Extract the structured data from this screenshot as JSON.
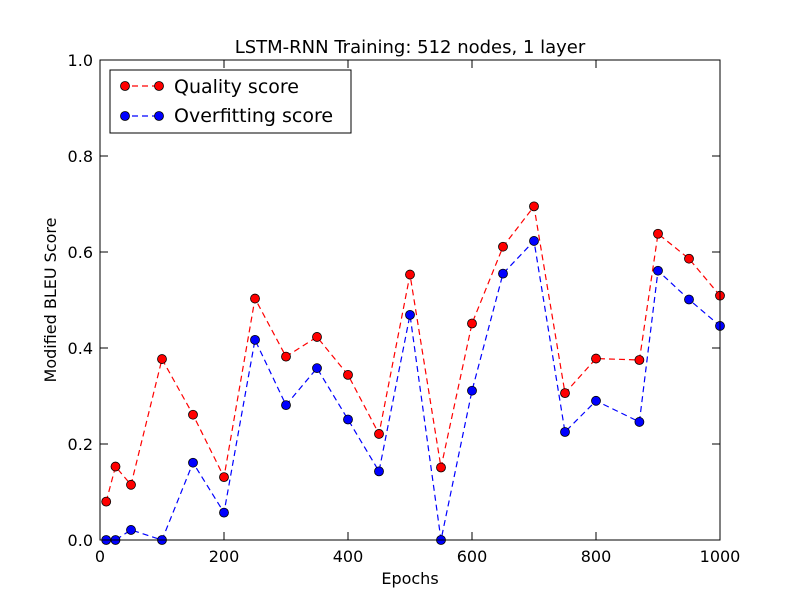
{
  "chart_data": {
    "type": "line",
    "title": "LSTM-RNN Training: 512 nodes, 1 layer",
    "xlabel": "Epochs",
    "ylabel": "Modified BLEU Score",
    "xlim": [
      0,
      1000
    ],
    "ylim": [
      0.0,
      1.0
    ],
    "x_ticks": [
      0,
      200,
      400,
      600,
      800,
      1000
    ],
    "x_tick_labels": [
      "0",
      "200",
      "400",
      "600",
      "800",
      "1000"
    ],
    "y_ticks": [
      0.0,
      0.2,
      0.4,
      0.6,
      0.8,
      1.0
    ],
    "y_tick_labels": [
      "0.0",
      "0.2",
      "0.4",
      "0.6",
      "0.8",
      "1.0"
    ],
    "grid": false,
    "legend_position": "top-left",
    "x": [
      10,
      25,
      50,
      100,
      150,
      200,
      250,
      300,
      350,
      400,
      450,
      500,
      550,
      600,
      650,
      700,
      750,
      800,
      870,
      900,
      950,
      1000
    ],
    "series": [
      {
        "name": "Quality score",
        "color": "#ff0000",
        "values": [
          0.08,
          0.153,
          0.115,
          0.377,
          0.261,
          0.131,
          0.503,
          0.382,
          0.423,
          0.344,
          0.221,
          0.553,
          0.151,
          0.451,
          0.611,
          0.695,
          0.306,
          0.378,
          0.375,
          0.638,
          0.586,
          0.509
        ]
      },
      {
        "name": "Overfitting score",
        "color": "#0000ff",
        "values": [
          0.0,
          0.0,
          0.021,
          0.0,
          0.161,
          0.057,
          0.417,
          0.281,
          0.358,
          0.251,
          0.143,
          0.469,
          0.0,
          0.311,
          0.555,
          0.623,
          0.225,
          0.29,
          0.246,
          0.561,
          0.501,
          0.446
        ]
      }
    ]
  }
}
